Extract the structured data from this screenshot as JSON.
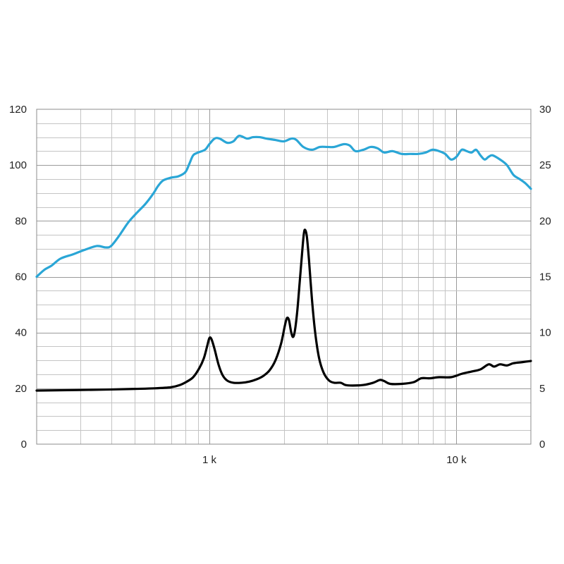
{
  "chart_data": {
    "type": "line",
    "x_scale": "log",
    "xlim": [
      200,
      20000
    ],
    "ylim_left": [
      0,
      120
    ],
    "ylim_right": [
      0,
      30
    ],
    "grid": true,
    "legend": "none",
    "x_ticks": [
      {
        "value": 1000,
        "label": "1 k"
      },
      {
        "value": 10000,
        "label": "10 k"
      }
    ],
    "y_left_ticks": [
      {
        "value": 0,
        "label": "0"
      },
      {
        "value": 20,
        "label": "20"
      },
      {
        "value": 40,
        "label": "40"
      },
      {
        "value": 60,
        "label": "60"
      },
      {
        "value": 80,
        "label": "80"
      },
      {
        "value": 100,
        "label": "100"
      },
      {
        "value": 120,
        "label": "120"
      }
    ],
    "y_right_ticks": [
      {
        "value": 0,
        "label": "0"
      },
      {
        "value": 5,
        "label": "5"
      },
      {
        "value": 10,
        "label": "10"
      },
      {
        "value": 15,
        "label": "15"
      },
      {
        "value": 20,
        "label": "20"
      },
      {
        "value": 25,
        "label": "25"
      },
      {
        "value": 30,
        "label": "30"
      }
    ],
    "series": [
      {
        "axis": "left",
        "color": "#2aa6d6",
        "points": [
          [
            200,
            60
          ],
          [
            215,
            62.5
          ],
          [
            230,
            64
          ],
          [
            250,
            66.5
          ],
          [
            280,
            68
          ],
          [
            310,
            69.5
          ],
          [
            350,
            71
          ],
          [
            380,
            70.5
          ],
          [
            400,
            71
          ],
          [
            430,
            74.5
          ],
          [
            470,
            79.5
          ],
          [
            510,
            83
          ],
          [
            550,
            86
          ],
          [
            590,
            89.5
          ],
          [
            620,
            92.5
          ],
          [
            650,
            94.5
          ],
          [
            700,
            95.5
          ],
          [
            750,
            96
          ],
          [
            800,
            97.5
          ],
          [
            830,
            100.5
          ],
          [
            860,
            103.5
          ],
          [
            900,
            104.5
          ],
          [
            960,
            105.5
          ],
          [
            1000,
            107.5
          ],
          [
            1050,
            109.5
          ],
          [
            1100,
            109.5
          ],
          [
            1180,
            108
          ],
          [
            1250,
            108.5
          ],
          [
            1320,
            110.5
          ],
          [
            1420,
            109.5
          ],
          [
            1500,
            110
          ],
          [
            1600,
            110
          ],
          [
            1700,
            109.5
          ],
          [
            1850,
            109
          ],
          [
            2000,
            108.5
          ],
          [
            2150,
            109.5
          ],
          [
            2250,
            109
          ],
          [
            2400,
            106.5
          ],
          [
            2600,
            105.5
          ],
          [
            2800,
            106.5
          ],
          [
            3000,
            106.5
          ],
          [
            3200,
            106.5
          ],
          [
            3500,
            107.5
          ],
          [
            3700,
            107
          ],
          [
            3900,
            105
          ],
          [
            4200,
            105.5
          ],
          [
            4500,
            106.5
          ],
          [
            4800,
            106
          ],
          [
            5100,
            104.5
          ],
          [
            5500,
            105
          ],
          [
            6000,
            104
          ],
          [
            6500,
            104
          ],
          [
            7000,
            104
          ],
          [
            7500,
            104.5
          ],
          [
            8000,
            105.5
          ],
          [
            8500,
            105
          ],
          [
            9000,
            104
          ],
          [
            9500,
            102
          ],
          [
            10000,
            103
          ],
          [
            10500,
            105.5
          ],
          [
            11000,
            105
          ],
          [
            11500,
            104.5
          ],
          [
            12000,
            105.5
          ],
          [
            12500,
            103.5
          ],
          [
            13000,
            102
          ],
          [
            13500,
            103
          ],
          [
            14000,
            103.5
          ],
          [
            15000,
            102
          ],
          [
            16000,
            100
          ],
          [
            17000,
            96.5
          ],
          [
            18000,
            95
          ],
          [
            19000,
            93.5
          ],
          [
            20000,
            91.5
          ]
        ]
      },
      {
        "axis": "right",
        "color": "#000000",
        "points": [
          [
            200,
            4.8
          ],
          [
            300,
            4.85
          ],
          [
            400,
            4.9
          ],
          [
            500,
            4.95
          ],
          [
            600,
            5.0
          ],
          [
            700,
            5.1
          ],
          [
            760,
            5.3
          ],
          [
            810,
            5.6
          ],
          [
            860,
            6.0
          ],
          [
            910,
            6.8
          ],
          [
            950,
            7.7
          ],
          [
            980,
            8.8
          ],
          [
            1000,
            9.5
          ],
          [
            1020,
            9.4
          ],
          [
            1050,
            8.5
          ],
          [
            1090,
            7.1
          ],
          [
            1130,
            6.2
          ],
          [
            1180,
            5.7
          ],
          [
            1250,
            5.5
          ],
          [
            1350,
            5.5
          ],
          [
            1450,
            5.6
          ],
          [
            1550,
            5.8
          ],
          [
            1650,
            6.1
          ],
          [
            1750,
            6.6
          ],
          [
            1850,
            7.5
          ],
          [
            1950,
            9.0
          ],
          [
            2020,
            10.6
          ],
          [
            2060,
            11.3
          ],
          [
            2100,
            11.1
          ],
          [
            2140,
            10.1
          ],
          [
            2180,
            9.6
          ],
          [
            2220,
            10.2
          ],
          [
            2270,
            12.0
          ],
          [
            2320,
            14.5
          ],
          [
            2370,
            17.0
          ],
          [
            2410,
            18.8
          ],
          [
            2440,
            19.2
          ],
          [
            2480,
            18.6
          ],
          [
            2530,
            16.5
          ],
          [
            2600,
            13.0
          ],
          [
            2680,
            10.0
          ],
          [
            2780,
            7.7
          ],
          [
            2900,
            6.4
          ],
          [
            3050,
            5.7
          ],
          [
            3200,
            5.5
          ],
          [
            3400,
            5.5
          ],
          [
            3550,
            5.3
          ],
          [
            3800,
            5.25
          ],
          [
            4200,
            5.3
          ],
          [
            4600,
            5.5
          ],
          [
            4900,
            5.75
          ],
          [
            5100,
            5.65
          ],
          [
            5400,
            5.4
          ],
          [
            6000,
            5.4
          ],
          [
            6700,
            5.55
          ],
          [
            7200,
            5.9
          ],
          [
            7800,
            5.9
          ],
          [
            8500,
            6.0
          ],
          [
            9500,
            6.0
          ],
          [
            10500,
            6.3
          ],
          [
            11500,
            6.5
          ],
          [
            12500,
            6.7
          ],
          [
            13500,
            7.15
          ],
          [
            14200,
            6.95
          ],
          [
            15000,
            7.15
          ],
          [
            16000,
            7.05
          ],
          [
            17000,
            7.25
          ],
          [
            18500,
            7.35
          ],
          [
            20000,
            7.45
          ]
        ]
      }
    ]
  }
}
